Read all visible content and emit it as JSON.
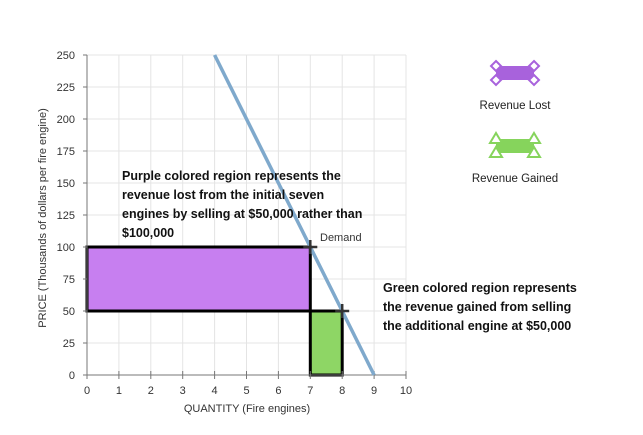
{
  "chart_data": {
    "type": "line",
    "xlabel": "QUANTITY (Fire engines)",
    "ylabel": "PRICE (Thousands of dollars per fire engine)",
    "xlim": [
      0,
      10
    ],
    "ylim": [
      0,
      250
    ],
    "xticks": [
      0,
      1,
      2,
      3,
      4,
      5,
      6,
      7,
      8,
      9,
      10
    ],
    "yticks": [
      0,
      25,
      50,
      75,
      100,
      125,
      150,
      175,
      200,
      225,
      250
    ],
    "grid": true,
    "series": [
      {
        "name": "Demand",
        "x": [
          4,
          9
        ],
        "y": [
          250,
          0
        ],
        "color": "#7fa9cc"
      }
    ],
    "points": [
      {
        "x": 7,
        "y": 100
      },
      {
        "x": 8,
        "y": 50
      }
    ],
    "regions": [
      {
        "name": "Revenue Lost",
        "x": [
          0,
          7
        ],
        "y": [
          50,
          100
        ],
        "color": "#c77ff0"
      },
      {
        "name": "Revenue Gained",
        "x": [
          7,
          8
        ],
        "y": [
          0,
          50
        ],
        "color": "#8ed665"
      }
    ],
    "annotations": [
      {
        "lines": [
          "Purple colored region represents the",
          "revenue lost from the initial seven",
          "engines by selling at $50,000 rather than",
          "$100,000"
        ]
      },
      {
        "lines": [
          "Green colored region represents",
          "the revenue gained from selling",
          "the additional engine at $50,000"
        ]
      }
    ],
    "legend": {
      "placement": "right",
      "items": [
        {
          "label": "Revenue Lost",
          "color": "#a862dc",
          "marker": "diamond"
        },
        {
          "label": "Revenue Gained",
          "color": "#86d45c",
          "marker": "triangle"
        }
      ]
    }
  }
}
